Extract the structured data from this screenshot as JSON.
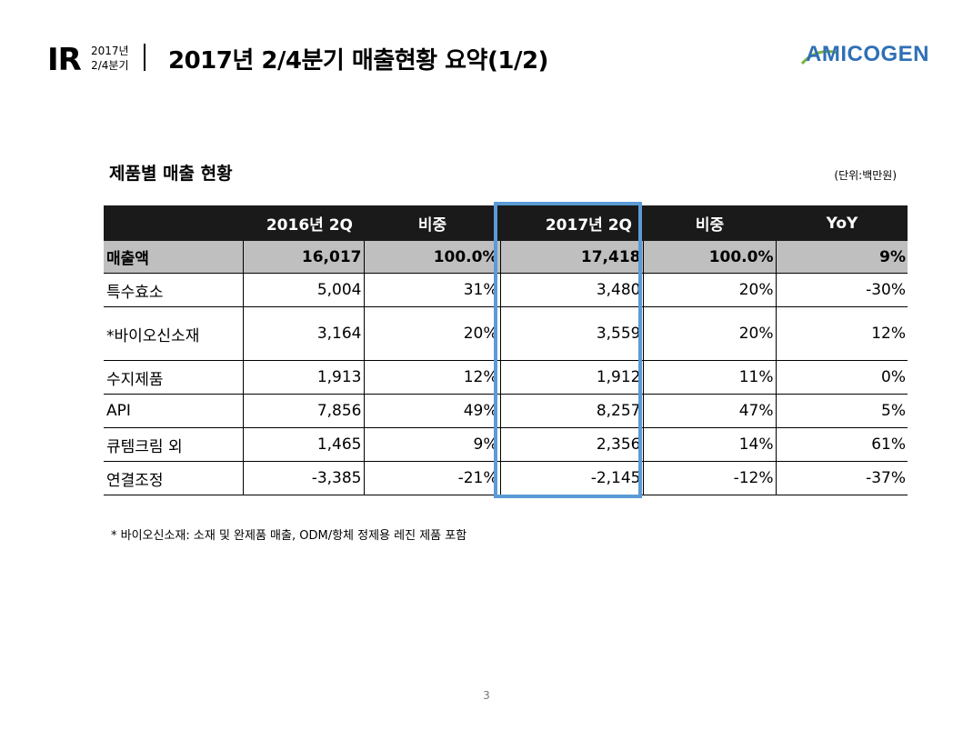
{
  "header": {
    "ir": "IR",
    "period_line1": "2017년",
    "period_line2": "2/4분기",
    "title": "2017년 2/4분기 매출현황 요약(1/2)",
    "logo": "AMICOGEN"
  },
  "section": {
    "title": "제품별 매출 현황",
    "unit": "(단위:백만원)"
  },
  "table": {
    "headers": [
      "",
      "2016년 2Q",
      "비중",
      "2017년 2Q",
      "비중",
      "YoY"
    ],
    "total": [
      "매출액",
      "16,017",
      "100.0%",
      "17,418",
      "100.0%",
      "9%"
    ],
    "rows": [
      [
        "특수효소",
        "5,004",
        "31%",
        "3,480",
        "20%",
        "-30%"
      ],
      [
        "*바이오신소재",
        "3,164",
        "20%",
        "3,559",
        "20%",
        "12%"
      ],
      [
        "수지제품",
        "1,913",
        "12%",
        "1,912",
        "11%",
        "0%"
      ],
      [
        "API",
        "7,856",
        "49%",
        "8,257",
        "47%",
        "5%"
      ],
      [
        "큐템크림 외",
        "1,465",
        "9%",
        "2,356",
        "14%",
        "61%"
      ],
      [
        "연결조정",
        "-3,385",
        "-21%",
        "-2,145",
        "-12%",
        "-37%"
      ]
    ]
  },
  "footnote": "* 바이오신소재: 소재 및 완제품 매출, ODM/항체 정제용 레진 제품 포함",
  "page_number": "3",
  "colors": {
    "header_bg": "#1a1a1a",
    "total_row_bg": "#bfbfbf",
    "highlight": "#5b9bd5",
    "logo": "#2f6fb6"
  }
}
